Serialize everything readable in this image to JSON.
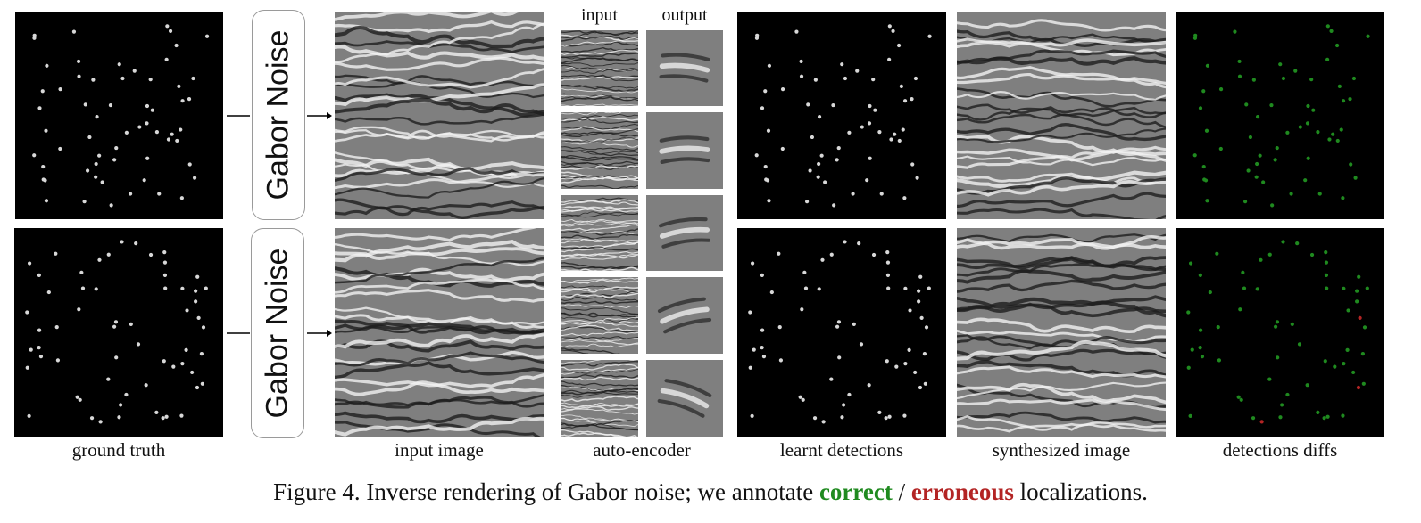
{
  "headers": {
    "input": "input",
    "output": "output"
  },
  "boxes": {
    "top": "Gabor Noise",
    "bottom": "Gabor Noise"
  },
  "captions": {
    "ground_truth": "ground truth",
    "input_image": "input image",
    "auto_encoder": "auto-encoder",
    "learnt_detections": "learnt detections",
    "synthesized_image": "synthesized image",
    "detections_diffs": "detections diffs"
  },
  "figure_caption": {
    "prefix": "Figure 4.  Inverse rendering of Gabor noise; we annotate ",
    "correct": "correct",
    "separator": " / ",
    "erroneous": "erroneous",
    "suffix": " localizations."
  },
  "colors": {
    "correct": "#1f8a1f",
    "erroneous": "#b32424",
    "dot": "#d8d8d8"
  }
}
